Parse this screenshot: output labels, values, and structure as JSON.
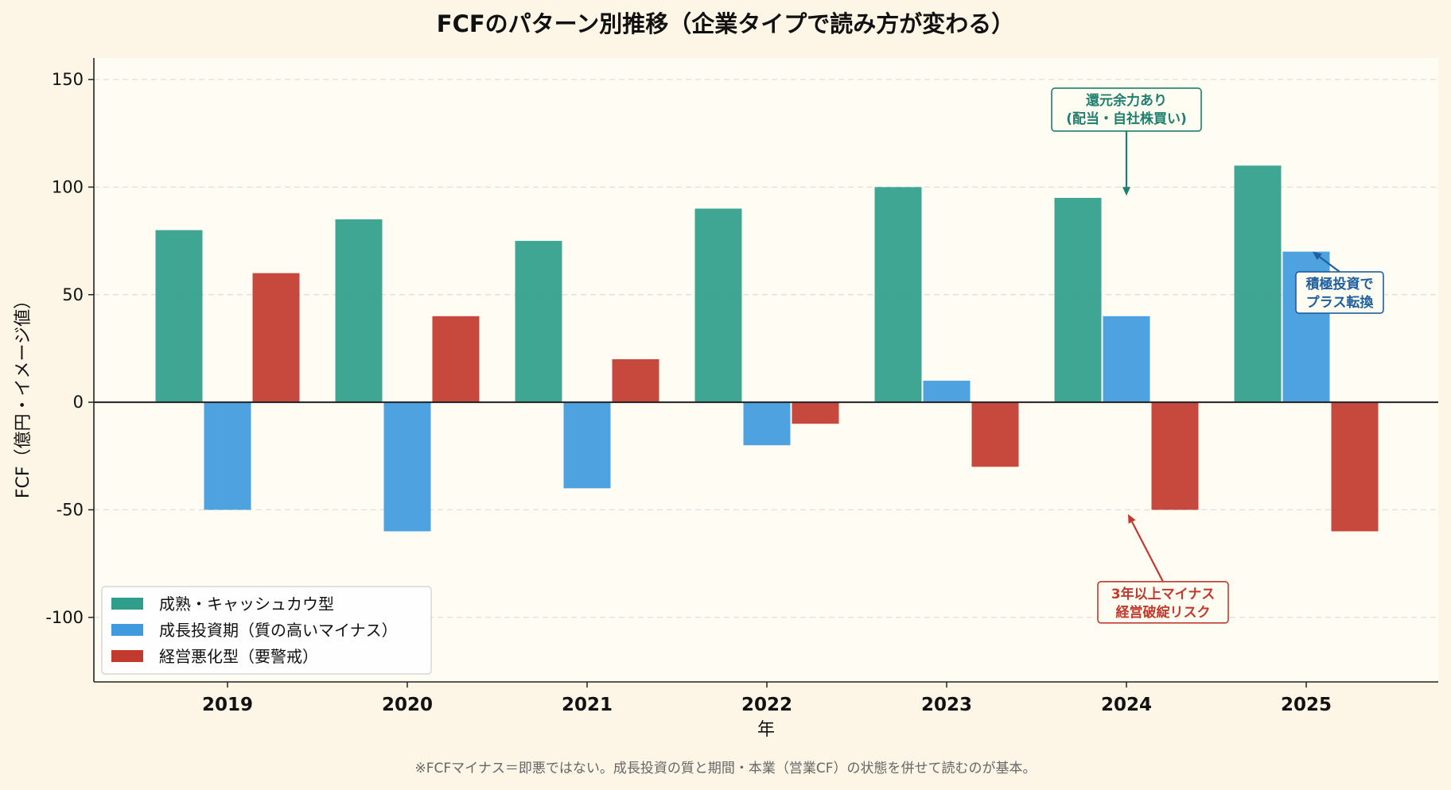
{
  "chart_data": {
    "type": "bar",
    "title": "FCFのパターン別推移（企業タイプで読み方が変わる）",
    "xlabel": "年",
    "ylabel": "FCF（億円・イメージ値）",
    "categories": [
      "2019",
      "2020",
      "2021",
      "2022",
      "2023",
      "2024",
      "2025"
    ],
    "ylim": [
      -130,
      160
    ],
    "yticks": [
      -100,
      -50,
      0,
      50,
      100,
      150
    ],
    "grid": "horizontal-dashed",
    "legend_position": "lower-left",
    "series": [
      {
        "name": "成熟・キャッシュカウ型",
        "color": "#2f9e8c",
        "values": [
          80,
          85,
          75,
          90,
          100,
          95,
          110
        ]
      },
      {
        "name": "成長投資期（質の高いマイナス）",
        "color": "#3f9ade",
        "values": [
          -50,
          -60,
          -40,
          -20,
          10,
          40,
          70
        ]
      },
      {
        "name": "経営悪化型（要警戒）",
        "color": "#c2392e",
        "values": [
          60,
          40,
          20,
          -10,
          -30,
          -50,
          -60
        ]
      }
    ],
    "annotations": [
      {
        "lines": [
          "還元余力あり",
          "(配当・自社株買い)"
        ],
        "color": "#1f7f6e",
        "target_category": "2024",
        "target_value": 96,
        "label_value": 136
      },
      {
        "lines": [
          "積極投資で",
          "プラス転換"
        ],
        "color": "#1f5f9e",
        "target_category": "2025",
        "target_value": 70,
        "label_value": 51
      },
      {
        "lines": [
          "3年以上マイナス",
          "経営破綻リスク"
        ],
        "color": "#c2392e",
        "target_category": "2024",
        "target_value": -52,
        "label_value": -93
      }
    ],
    "footnote": "※FCFマイナス＝即悪ではない。成長投資の質と期間・本業（営業CF）の状態を併せて読むのが基本。"
  }
}
